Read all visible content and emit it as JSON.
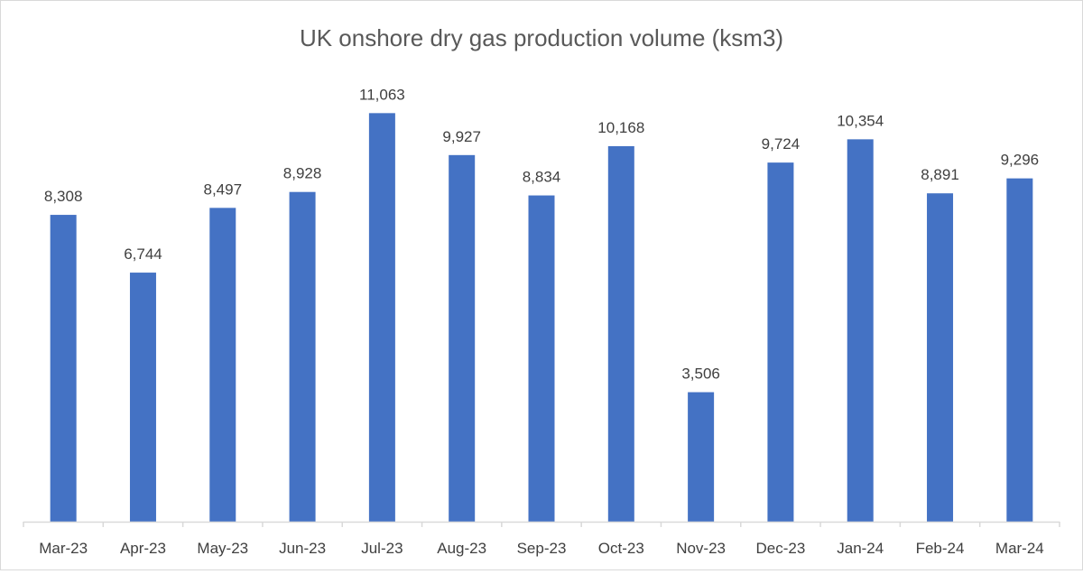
{
  "chart_data": {
    "type": "bar",
    "title": "UK onshore dry gas production volume (ksm3)",
    "xlabel": "",
    "ylabel": "",
    "categories": [
      "Mar-23",
      "Apr-23",
      "May-23",
      "Jun-23",
      "Jul-23",
      "Aug-23",
      "Sep-23",
      "Oct-23",
      "Nov-23",
      "Dec-23",
      "Jan-24",
      "Feb-24",
      "Mar-24"
    ],
    "values": [
      8308,
      6744,
      8497,
      8928,
      11063,
      9927,
      8834,
      10168,
      3506,
      9724,
      10354,
      8891,
      9296
    ],
    "data_labels": [
      "8,308",
      "6,744",
      "8,497",
      "8,928",
      "11,063",
      "9,927",
      "8,834",
      "10,168",
      "3,506",
      "9,724",
      "10,354",
      "8,891",
      "9,296"
    ],
    "ylim": [
      0,
      12000
    ],
    "grid": false,
    "legend": "none",
    "colors": {
      "bar": "#4472c4",
      "text": "#404040",
      "axis": "#d9d9d9"
    }
  }
}
